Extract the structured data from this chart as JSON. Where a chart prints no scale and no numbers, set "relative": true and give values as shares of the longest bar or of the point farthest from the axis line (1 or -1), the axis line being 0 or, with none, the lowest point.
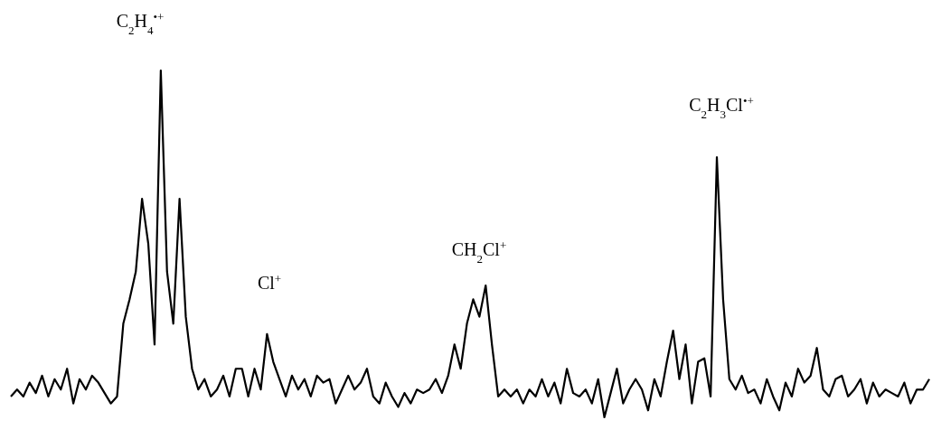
{
  "chart_data": {
    "type": "line",
    "relative": true,
    "tick_labels": false,
    "marker": "none",
    "line_style": "solid",
    "categories": [
      null,
      null,
      null,
      null,
      null,
      null,
      null,
      null,
      null,
      null,
      null,
      null,
      null,
      null,
      null,
      null,
      null,
      null,
      null,
      null,
      null,
      null,
      null,
      null,
      null,
      null,
      null,
      null,
      null,
      null,
      null,
      null,
      null,
      null,
      null,
      null,
      null,
      null,
      null,
      null,
      null,
      null,
      null,
      null,
      null,
      null,
      null,
      null,
      null,
      null,
      null,
      null,
      null,
      null,
      null,
      null,
      null,
      null,
      null,
      null,
      null,
      null,
      null,
      null,
      null,
      null,
      null,
      null,
      null,
      null,
      null,
      null,
      null,
      null,
      null,
      null,
      null,
      null,
      null,
      null,
      null,
      null,
      null,
      null,
      null,
      null,
      null,
      null,
      null,
      null,
      null,
      null,
      null,
      null,
      null,
      null,
      null,
      null,
      null,
      null,
      null,
      null,
      null,
      null,
      null,
      null,
      null,
      null,
      null,
      null,
      null,
      null,
      null,
      null,
      null,
      null,
      null,
      null,
      null,
      null,
      null,
      null,
      null,
      null,
      null,
      null,
      null,
      null,
      null,
      null,
      null,
      null,
      null,
      null,
      null,
      null,
      null,
      null,
      null,
      null,
      null,
      null,
      null,
      null,
      null,
      null,
      null,
      null
    ],
    "series": [
      {
        "color": "#000000",
        "values": [
          0.06,
          0.08,
          0.06,
          0.1,
          0.07,
          0.12,
          0.06,
          0.11,
          0.08,
          0.14,
          0.04,
          0.11,
          0.08,
          0.12,
          0.1,
          0.07,
          0.04,
          0.06,
          0.27,
          0.34,
          0.42,
          0.63,
          0.5,
          0.21,
          1,
          0.42,
          0.27,
          0.63,
          0.29,
          0.14,
          0.08,
          0.11,
          0.06,
          0.08,
          0.12,
          0.06,
          0.14,
          0.14,
          0.06,
          0.14,
          0.08,
          0.24,
          0.16,
          0.11,
          0.06,
          0.12,
          0.08,
          0.11,
          0.06,
          0.12,
          0.1,
          0.11,
          0.04,
          0.08,
          0.12,
          0.08,
          0.1,
          0.14,
          0.06,
          0.04,
          0.1,
          0.06,
          0.03,
          0.07,
          0.04,
          0.08,
          0.07,
          0.08,
          0.11,
          0.07,
          0.12,
          0.21,
          0.14,
          0.27,
          0.34,
          0.29,
          0.38,
          0.21,
          0.06,
          0.08,
          0.06,
          0.08,
          0.04,
          0.08,
          0.06,
          0.11,
          0.06,
          0.1,
          0.04,
          0.14,
          0.07,
          0.06,
          0.08,
          0.04,
          0.11,
          0,
          0.07,
          0.14,
          0.04,
          0.08,
          0.11,
          0.08,
          0.02,
          0.11,
          0.06,
          0.16,
          0.25,
          0.11,
          0.21,
          0.04,
          0.16,
          0.17,
          0.06,
          0.75,
          0.34,
          0.11,
          0.08,
          0.12,
          0.07,
          0.08,
          0.04,
          0.11,
          0.06,
          0.02,
          0.1,
          0.06,
          0.14,
          0.1,
          0.12,
          0.2,
          0.08,
          0.06,
          0.11,
          0.12,
          0.06,
          0.08,
          0.11,
          0.04,
          0.1,
          0.06,
          0.08,
          0.07,
          0.06,
          0.1,
          0.04,
          0.08,
          0.08,
          0.11
        ]
      }
    ],
    "annotations": [
      "C$_{2}$H$_{4}$$^{•+}$",
      "Cl$^{+}$",
      "CH$_{2}$Cl$^{+}$",
      "C$_{2}$H$_{3}$Cl$^{•+}$"
    ]
  }
}
